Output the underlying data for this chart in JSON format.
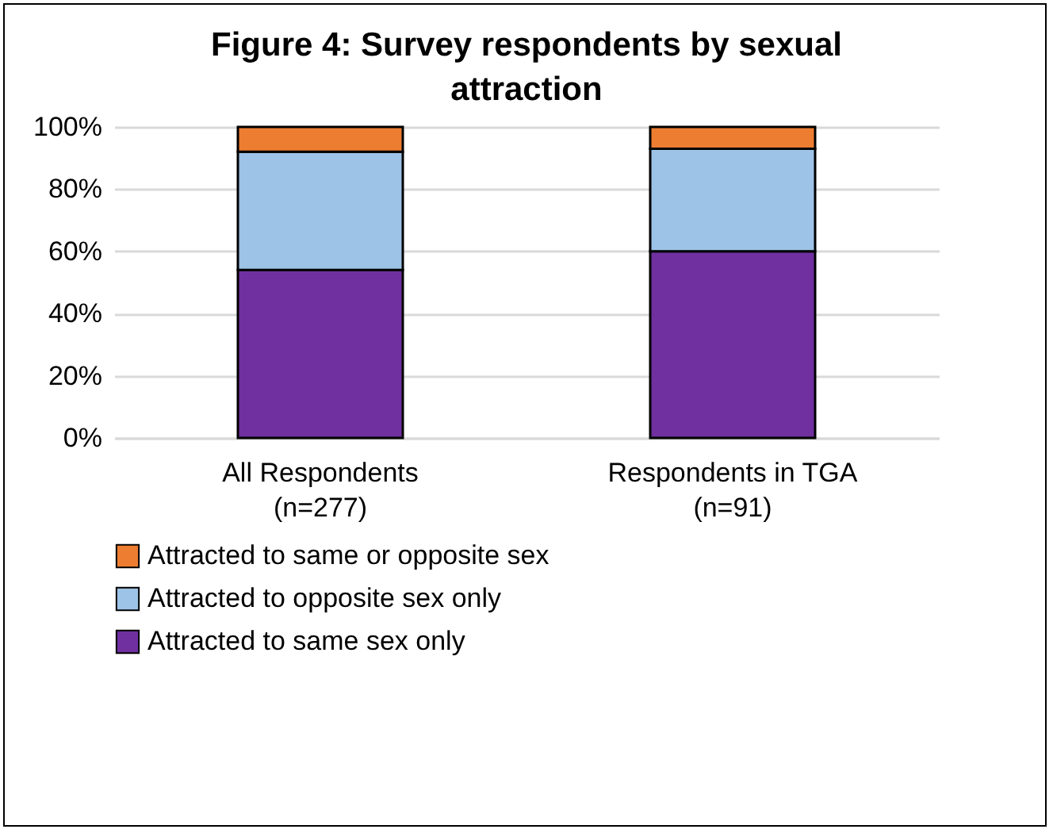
{
  "chart_data": {
    "type": "bar",
    "title": "Figure 4: Survey respondents by sexual attraction",
    "categories": [
      "All Respondents\n(n=277)",
      "Respondents in TGA\n(n=91)"
    ],
    "stacked": true,
    "series": [
      {
        "name": "Attracted to same sex only",
        "color": "#7030a0",
        "values": [
          54,
          60
        ]
      },
      {
        "name": "Attracted to opposite sex only",
        "color": "#9dc3e6",
        "values": [
          38,
          33
        ]
      },
      {
        "name": "Attracted to same or opposite sex",
        "color": "#ed7d31",
        "values": [
          8,
          7
        ]
      }
    ],
    "ylim": [
      0,
      100
    ],
    "yticks": [
      {
        "value": 0,
        "label": "0%"
      },
      {
        "value": 20,
        "label": "20%"
      },
      {
        "value": 40,
        "label": "40%"
      },
      {
        "value": 60,
        "label": "60%"
      },
      {
        "value": 80,
        "label": "80%"
      },
      {
        "value": 100,
        "label": "100%"
      }
    ],
    "grid": "y",
    "legend": "bottom"
  }
}
